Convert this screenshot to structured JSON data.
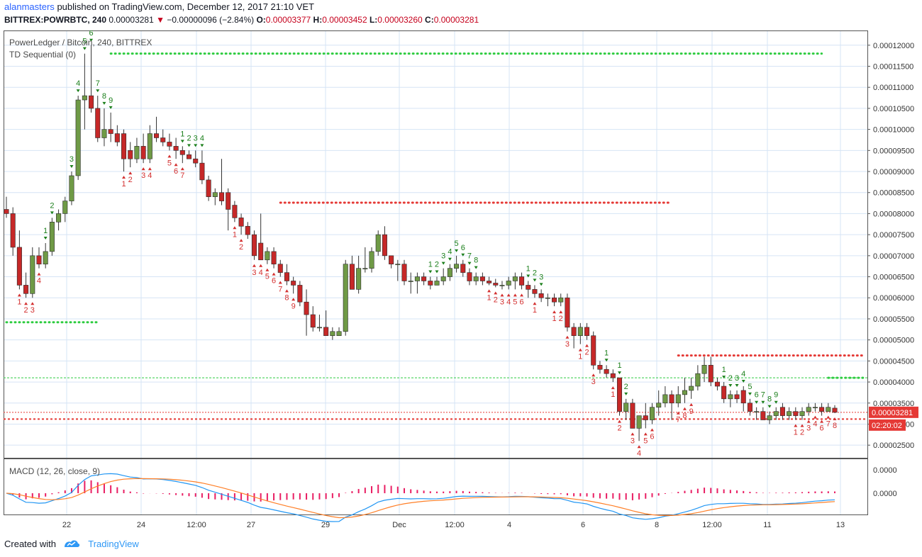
{
  "header": {
    "user": "alanmasters",
    "published": "published on TradingView.com, December 12, 2017 21:10 VET",
    "symbol": "BITTREX:POWRBTC, 240",
    "last": "0.00003281",
    "change_arrow": "▼",
    "change": "−0.00000096 (−2.84%)",
    "o_label": "O:",
    "o_value": "0.00003377",
    "h_label": "H:",
    "h_value": "0.00003452",
    "l_label": "L:",
    "l_value": "0.00003260",
    "c_label": "C:",
    "c_value": "0.00003281"
  },
  "legend": {
    "title": "PowerLedger / Bitcoin, 240, BITTREX",
    "indicator": "TD Sequential (0)",
    "macd": "MACD (12, 26, close, 9)"
  },
  "footer": {
    "created": "Created with",
    "brand": "TradingView"
  },
  "colors": {
    "up": "#4caf50",
    "down": "#e53935",
    "upBody": "#6f9a46",
    "downBody": "#c62828",
    "grid": "#d6e4f5",
    "macd": "#2196f3",
    "signal": "#ff7f27",
    "hist": "#e91e63"
  },
  "chart_data": [
    {
      "type": "candlestick",
      "title": "PowerLedger / Bitcoin, 240, BITTREX",
      "ylim": [
        2.2e-05,
        0.0001235
      ],
      "y_ticks": [
        "0.00012000",
        "0.00011500",
        "0.00011000",
        "0.00010500",
        "0.00010000",
        "0.00009500",
        "0.00009000",
        "0.00008500",
        "0.00008000",
        "0.00007500",
        "0.00007000",
        "0.00006500",
        "0.00006000",
        "0.00005500",
        "0.00005000",
        "0.00004500",
        "0.00004000",
        "0.00003500",
        "0.00003000",
        "0.00002500"
      ],
      "x_ticks": [
        "22",
        "24",
        "12:00",
        "27",
        "29",
        "Dec",
        "12:00",
        "4",
        "6",
        "8",
        "12:00",
        "11",
        "13"
      ],
      "last_price_label": "0.00003281",
      "countdown_label": "02:20:02",
      "candles_ohlc": [
        [
          8.1e-05,
          8.4e-05,
          7.9e-05,
          8e-05
        ],
        [
          8e-05,
          8.15e-05,
          7e-05,
          7.2e-05
        ],
        [
          7.2e-05,
          7.6e-05,
          6.2e-05,
          6.3e-05
        ],
        [
          6.3e-05,
          6.6e-05,
          6e-05,
          6.1e-05
        ],
        [
          6.1e-05,
          7.2e-05,
          6e-05,
          7e-05
        ],
        [
          7e-05,
          7.2e-05,
          6.7e-05,
          6.8e-05
        ],
        [
          6.8e-05,
          7.3e-05,
          6.7e-05,
          7.1e-05
        ],
        [
          7.1e-05,
          7.9e-05,
          7e-05,
          7.8e-05
        ],
        [
          7.8e-05,
          8.1e-05,
          7.6e-05,
          8e-05
        ],
        [
          8e-05,
          8.4e-05,
          7.8e-05,
          8.3e-05
        ],
        [
          8.3e-05,
          9e-05,
          8.2e-05,
          8.9e-05
        ],
        [
          8.9e-05,
          0.000108,
          8.8e-05,
          0.000107
        ],
        [
          0.000107,
          0.000118,
          0.0001,
          0.000108
        ],
        [
          0.000108,
          0.00012,
          0.000104,
          0.000105
        ],
        [
          0.000105,
          0.000108,
          9.7e-05,
          9.8e-05
        ],
        [
          9.8e-05,
          0.000105,
          9.6e-05,
          0.0001
        ],
        [
          0.0001,
          0.000104,
          9.7e-05,
          9.9e-05
        ],
        [
          9.9e-05,
          0.000101,
          9.6e-05,
          9.7e-05
        ],
        [
          9.9e-05,
          0.0001,
          9e-05,
          9.3e-05
        ],
        [
          9.5e-05,
          9.7e-05,
          9.1e-05,
          9.3e-05
        ],
        [
          9.3e-05,
          9.8e-05,
          9.2e-05,
          9.6e-05
        ],
        [
          9.6e-05,
          9.9e-05,
          9.2e-05,
          9.3e-05
        ],
        [
          9.3e-05,
          0.000101,
          9.2e-05,
          9.9e-05
        ],
        [
          9.9e-05,
          0.000103,
          9.7e-05,
          9.8e-05
        ],
        [
          9.8e-05,
          0.0001,
          9.6e-05,
          9.7e-05
        ],
        [
          9.7e-05,
          9.9e-05,
          9.5e-05,
          9.6e-05
        ],
        [
          9.6e-05,
          9.8e-05,
          9.3e-05,
          9.5e-05
        ],
        [
          9.5e-05,
          9.6e-05,
          9.2e-05,
          9.4e-05
        ],
        [
          9.4e-05,
          9.5e-05,
          9.3e-05,
          9.3e-05
        ],
        [
          9.3e-05,
          9.5e-05,
          9.1e-05,
          9.2e-05
        ],
        [
          9.2e-05,
          9.5e-05,
          8.7e-05,
          8.8e-05
        ],
        [
          8.8e-05,
          8.9e-05,
          8.3e-05,
          8.4e-05
        ],
        [
          8.4e-05,
          8.6e-05,
          8.2e-05,
          8.5e-05
        ],
        [
          8.5e-05,
          9.3e-05,
          8.2e-05,
          8.3e-05
        ],
        [
          8.5e-05,
          8.6e-05,
          7.6e-05,
          8.1e-05
        ],
        [
          8.2e-05,
          8.3e-05,
          7.8e-05,
          7.9e-05
        ],
        [
          7.9e-05,
          8e-05,
          7.5e-05,
          7.7e-05
        ],
        [
          7.7e-05,
          7.8e-05,
          7.4e-05,
          7.5e-05
        ],
        [
          7.5e-05,
          7.6e-05,
          6.9e-05,
          7e-05
        ],
        [
          7.3e-05,
          8e-05,
          6.9e-05,
          6.9e-05
        ],
        [
          6.9e-05,
          7.2e-05,
          6.8e-05,
          7.1e-05
        ],
        [
          7.1e-05,
          7.2e-05,
          6.7e-05,
          6.8e-05
        ],
        [
          6.8e-05,
          6.9e-05,
          6.5e-05,
          6.6e-05
        ],
        [
          6.6e-05,
          6.8e-05,
          6.3e-05,
          6.4e-05
        ],
        [
          6.4e-05,
          6.5e-05,
          6.1e-05,
          6.3e-05
        ],
        [
          6.3e-05,
          6.4e-05,
          5.8e-05,
          5.9e-05
        ],
        [
          5.9e-05,
          6.2e-05,
          5.1e-05,
          5.6e-05
        ],
        [
          5.6e-05,
          5.8e-05,
          5.2e-05,
          5.3e-05
        ],
        [
          5.3e-05,
          5.6e-05,
          5.2e-05,
          5.3e-05
        ],
        [
          5.3e-05,
          5.7e-05,
          5.1e-05,
          5.1e-05
        ],
        [
          5.1e-05,
          5.3e-05,
          5e-05,
          5.2e-05
        ],
        [
          5.1e-05,
          5.3e-05,
          5.1e-05,
          5.2e-05
        ],
        [
          5.2e-05,
          6.9e-05,
          5.1e-05,
          6.8e-05
        ],
        [
          6.8e-05,
          7e-05,
          6.2e-05,
          6.2e-05
        ],
        [
          6.2e-05,
          7e-05,
          6.1e-05,
          6.7e-05
        ],
        [
          6.7e-05,
          7.2e-05,
          6.6e-05,
          6.7e-05
        ],
        [
          6.7e-05,
          7.2e-05,
          6.6e-05,
          7.1e-05
        ],
        [
          7.1e-05,
          7.6e-05,
          7e-05,
          7.5e-05
        ],
        [
          7.5e-05,
          7.7e-05,
          6.9e-05,
          7e-05
        ],
        [
          7e-05,
          7e-05,
          6.7e-05,
          6.8e-05
        ],
        [
          6.8e-05,
          6.9e-05,
          6.4e-05,
          6.8e-05
        ],
        [
          6.8e-05,
          6.9e-05,
          6.3e-05,
          6.4e-05
        ],
        [
          6.4e-05,
          6.6e-05,
          6.1e-05,
          6.4e-05
        ],
        [
          6.4e-05,
          6.6e-05,
          6.1e-05,
          6.5e-05
        ],
        [
          6.5e-05,
          6.6e-05,
          6.3e-05,
          6.4e-05
        ],
        [
          6.4e-05,
          6.5e-05,
          6.2e-05,
          6.3e-05
        ],
        [
          6.3e-05,
          6.5e-05,
          6.3e-05,
          6.4e-05
        ],
        [
          6.4e-05,
          6.7e-05,
          6.3e-05,
          6.5e-05
        ],
        [
          6.5e-05,
          6.8e-05,
          6.4e-05,
          6.7e-05
        ],
        [
          6.7e-05,
          7e-05,
          6.6e-05,
          6.8e-05
        ],
        [
          6.8e-05,
          6.9e-05,
          6.5e-05,
          6.6e-05
        ],
        [
          6.6e-05,
          6.7e-05,
          6.3e-05,
          6.4e-05
        ],
        [
          6.4e-05,
          6.6e-05,
          6.3e-05,
          6.5e-05
        ],
        [
          6.5e-05,
          6.6e-05,
          6.3e-05,
          6.4e-05
        ],
        [
          6.4e-05,
          6.5e-05,
          6.3e-05,
          6.35e-05
        ],
        [
          6.35e-05,
          6.45e-05,
          6.25e-05,
          6.3e-05
        ],
        [
          6.3e-05,
          6.4e-05,
          6.2e-05,
          6.3e-05
        ],
        [
          6.3e-05,
          6.5e-05,
          6.2e-05,
          6.4e-05
        ],
        [
          6.4e-05,
          6.6e-05,
          6.2e-05,
          6.5e-05
        ],
        [
          6.5e-05,
          6.6e-05,
          6.2e-05,
          6.3e-05
        ],
        [
          6.3e-05,
          6.4e-05,
          6e-05,
          6.2e-05
        ],
        [
          6.2e-05,
          6.3e-05,
          6e-05,
          6.1e-05
        ],
        [
          6.1e-05,
          6.2e-05,
          5.9e-05,
          6e-05
        ],
        [
          6e-05,
          6.1e-05,
          5.8e-05,
          6e-05
        ],
        [
          6e-05,
          6.1e-05,
          5.8e-05,
          5.9e-05
        ],
        [
          5.9e-05,
          6.1e-05,
          5.8e-05,
          6e-05
        ],
        [
          6e-05,
          6.1e-05,
          5.2e-05,
          5.3e-05
        ],
        [
          5.3e-05,
          5.4e-05,
          4.8e-05,
          5.1e-05
        ],
        [
          5.1e-05,
          5.4e-05,
          4.9e-05,
          5.3e-05
        ],
        [
          5.3e-05,
          5.4e-05,
          5e-05,
          5.1e-05
        ],
        [
          5.1e-05,
          5.2e-05,
          4.3e-05,
          4.4e-05
        ],
        [
          4.4e-05,
          4.5e-05,
          4.2e-05,
          4.3e-05
        ],
        [
          4.3e-05,
          4.4e-05,
          4.1e-05,
          4.2e-05
        ],
        [
          4.2e-05,
          4.3e-05,
          4e-05,
          4.1e-05
        ],
        [
          4.1e-05,
          4.1e-05,
          3.2e-05,
          3.3e-05
        ],
        [
          3.3e-05,
          3.6e-05,
          3.1e-05,
          3.5e-05
        ],
        [
          3.5e-05,
          3.6e-05,
          2.9e-05,
          2.9e-05
        ],
        [
          2.9e-05,
          3.2e-05,
          2.6e-05,
          3.2e-05
        ],
        [
          3.2e-05,
          3.5e-05,
          2.9e-05,
          3.1e-05
        ],
        [
          3.1e-05,
          3.5e-05,
          3e-05,
          3.4e-05
        ],
        [
          3.4e-05,
          3.8e-05,
          3.2e-05,
          3.5e-05
        ],
        [
          3.5e-05,
          3.9e-05,
          3.4e-05,
          3.7e-05
        ],
        [
          3.7e-05,
          3.8e-05,
          3.1e-05,
          3.5e-05
        ],
        [
          3.5e-05,
          3.9e-05,
          3.4e-05,
          3.7e-05
        ],
        [
          3.7e-05,
          4.1e-05,
          3.5e-05,
          3.8e-05
        ],
        [
          3.8e-05,
          4.1e-05,
          3.6e-05,
          3.9e-05
        ],
        [
          3.9e-05,
          4.4e-05,
          3.8e-05,
          4.2e-05
        ],
        [
          4.2e-05,
          4.6e-05,
          4e-05,
          4.4e-05
        ],
        [
          4.4e-05,
          4.6e-05,
          3.9e-05,
          4e-05
        ],
        [
          4e-05,
          4.1e-05,
          3.8e-05,
          3.9e-05
        ],
        [
          3.9e-05,
          4e-05,
          3.5e-05,
          3.6e-05
        ],
        [
          3.6e-05,
          3.8e-05,
          3.4e-05,
          3.7e-05
        ],
        [
          3.7e-05,
          3.8e-05,
          3.5e-05,
          3.6e-05
        ],
        [
          3.8e-05,
          3.9e-05,
          3.3e-05,
          3.5e-05
        ],
        [
          3.5e-05,
          3.6e-05,
          3.2e-05,
          3.3e-05
        ],
        [
          3.3e-05,
          3.4e-05,
          3.1e-05,
          3.3e-05
        ],
        [
          3.3e-05,
          3.4e-05,
          3.1e-05,
          3.1e-05
        ],
        [
          3.1e-05,
          3.3e-05,
          3e-05,
          3.2e-05
        ],
        [
          3.2e-05,
          3.4e-05,
          3.1e-05,
          3.3e-05
        ],
        [
          3.4e-05,
          3.5e-05,
          3.1e-05,
          3.2e-05
        ],
        [
          3.2e-05,
          3.4e-05,
          3.1e-05,
          3.3e-05
        ],
        [
          3.3e-05,
          3.4e-05,
          3.1e-05,
          3.2e-05
        ],
        [
          3.2e-05,
          3.4e-05,
          3.1e-05,
          3.3e-05
        ],
        [
          3.3e-05,
          3.5e-05,
          3.2e-05,
          3.4e-05
        ],
        [
          3.4e-05,
          3.5e-05,
          3.3e-05,
          3.4e-05
        ],
        [
          3.4e-05,
          3.5e-05,
          3.2e-05,
          3.3e-05
        ],
        [
          3.3e-05,
          3.5e-05,
          3.3e-05,
          3.4e-05
        ],
        [
          3.38e-05,
          3.45e-05,
          3.26e-05,
          3.28e-05
        ]
      ],
      "td_sell_setup_counts": [
        [
          6,
          "1"
        ],
        [
          7,
          "2"
        ],
        [
          10,
          "3"
        ],
        [
          11,
          "4"
        ],
        [
          12,
          "5"
        ],
        [
          13,
          "6"
        ],
        [
          14,
          "7"
        ],
        [
          15,
          "8"
        ],
        [
          16,
          "9"
        ],
        [
          27,
          "1"
        ],
        [
          28,
          "2"
        ],
        [
          29,
          "3"
        ],
        [
          30,
          "4"
        ],
        [
          65,
          "1"
        ],
        [
          66,
          "2"
        ],
        [
          67,
          "3"
        ],
        [
          68,
          "4"
        ],
        [
          69,
          "5"
        ],
        [
          70,
          "6"
        ],
        [
          71,
          "7"
        ],
        [
          72,
          "8"
        ],
        [
          80,
          "1"
        ],
        [
          81,
          "2"
        ],
        [
          82,
          "3"
        ],
        [
          92,
          "1"
        ],
        [
          94,
          "1"
        ],
        [
          95,
          "2"
        ],
        [
          110,
          "1"
        ],
        [
          111,
          "2"
        ],
        [
          112,
          "3"
        ],
        [
          113,
          "4"
        ],
        [
          114,
          "5"
        ],
        [
          115,
          "6"
        ],
        [
          116,
          "7"
        ],
        [
          117,
          "8"
        ],
        [
          118,
          "9"
        ],
        [
          131,
          "1"
        ],
        [
          132,
          "2"
        ],
        [
          134,
          "3"
        ],
        [
          139,
          "1"
        ],
        [
          140,
          "2"
        ],
        [
          141,
          "3"
        ],
        [
          142,
          "4"
        ]
      ],
      "td_buy_setup_counts": [
        [
          2,
          "1"
        ],
        [
          3,
          "2"
        ],
        [
          4,
          "3"
        ],
        [
          5,
          "4"
        ],
        [
          18,
          "1"
        ],
        [
          19,
          "2"
        ],
        [
          21,
          "3"
        ],
        [
          22,
          "4"
        ],
        [
          25,
          "5"
        ],
        [
          26,
          "6"
        ],
        [
          27,
          "7"
        ],
        [
          35,
          "1"
        ],
        [
          36,
          "2"
        ],
        [
          38,
          "3"
        ],
        [
          39,
          "4"
        ],
        [
          40,
          "5"
        ],
        [
          41,
          "6"
        ],
        [
          42,
          "7"
        ],
        [
          43,
          "8"
        ],
        [
          44,
          "9"
        ],
        [
          74,
          "1"
        ],
        [
          75,
          "2"
        ],
        [
          76,
          "3"
        ],
        [
          77,
          "4"
        ],
        [
          78,
          "5"
        ],
        [
          79,
          "6"
        ],
        [
          81,
          "1"
        ],
        [
          84,
          "1"
        ],
        [
          85,
          "2"
        ],
        [
          86,
          "3"
        ],
        [
          88,
          "1"
        ],
        [
          89,
          "2"
        ],
        [
          90,
          "3"
        ],
        [
          93,
          "1"
        ],
        [
          94,
          "2"
        ],
        [
          96,
          "3"
        ],
        [
          97,
          "4"
        ],
        [
          98,
          "5"
        ],
        [
          99,
          "6"
        ],
        [
          103,
          "7"
        ],
        [
          104,
          "8"
        ],
        [
          105,
          "9"
        ],
        [
          121,
          "1"
        ],
        [
          122,
          "2"
        ],
        [
          123,
          "3"
        ],
        [
          124,
          "4"
        ],
        [
          125,
          "6"
        ],
        [
          126,
          "7"
        ],
        [
          127,
          "8"
        ],
        [
          128,
          "9"
        ],
        [
          133,
          "1"
        ],
        [
          134,
          "2"
        ],
        [
          145,
          "1"
        ]
      ],
      "resistance_lines": [
        {
          "value": 0.000118,
          "from": 16,
          "to": 125,
          "color": "#2ecc40"
        },
        {
          "value": 8.26e-05,
          "from": 42,
          "to": 102,
          "color": "#e53935"
        },
        {
          "value": 4.63e-05,
          "from": 103,
          "to": 135,
          "color": "#e53935"
        },
        {
          "value": 5.42e-05,
          "from": 0,
          "to": 14,
          "color": "#2ecc40"
        },
        {
          "value": 4.1e-05,
          "from": 126,
          "to": 150,
          "color": "#2ecc40"
        }
      ]
    },
    {
      "type": "line",
      "title": "MACD (12, 26, close, 9)",
      "y_ticks": [
        "0.0000",
        "0.0000"
      ]
    }
  ]
}
